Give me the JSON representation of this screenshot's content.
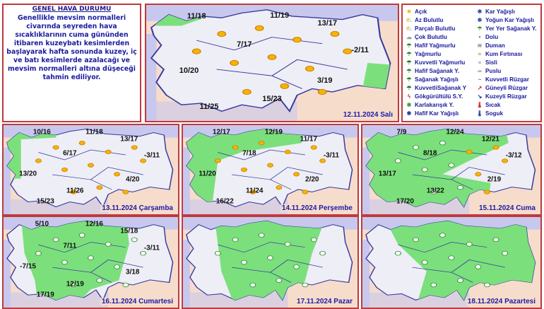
{
  "info": {
    "title": "GENEL HAVA DURUMU",
    "text": "Genellikle mevsim normalleri civarında seyreden hava sıcaklıklarının cuma gününden itibaren kuzeybatı kesimlerden başlayarak hafta sonunda kuzey, iç ve batı kesimlerde azalacağı ve mevsim normalleri altına düşeceği tahmin ediliyor."
  },
  "legend": [
    {
      "label": "Açık",
      "icon": "sun-icon"
    },
    {
      "label": "Az Bulutlu",
      "icon": "sun-cloud-icon"
    },
    {
      "label": "Parçalı Bulutlu",
      "icon": "partly-cloudy-icon"
    },
    {
      "label": "Çok Bulutlu",
      "icon": "cloud-icon"
    },
    {
      "label": "Hafif Yağmurlu",
      "icon": "light-rain-icon"
    },
    {
      "label": "Yağmurlu",
      "icon": "rain-icon"
    },
    {
      "label": "Kuvvetli Yağmurlu",
      "icon": "heavy-rain-icon"
    },
    {
      "label": "Hafif Sağanak Y.",
      "icon": "light-shower-icon"
    },
    {
      "label": "Sağanak Yağışlı",
      "icon": "shower-icon"
    },
    {
      "label": "KuvvetliSağanak Y",
      "icon": "heavy-shower-icon"
    },
    {
      "label": "Gökgürültülü S.Y.",
      "icon": "thunderstorm-icon"
    },
    {
      "label": "Karlakarışık Y.",
      "icon": "sleet-icon"
    },
    {
      "label": "Hafif Kar Yağışlı",
      "icon": "light-snow-icon"
    },
    {
      "label": "Kar Yağışlı",
      "icon": "snow-icon"
    },
    {
      "label": "Yoğun Kar Yağışlı",
      "icon": "heavy-snow-icon"
    },
    {
      "label": "Yer Yer Sağanak Y.",
      "icon": "scattered-shower-icon"
    },
    {
      "label": "Dolu",
      "icon": "hail-icon"
    },
    {
      "label": "Duman",
      "icon": "smoke-icon"
    },
    {
      "label": "Kum Fırtınası",
      "icon": "sandstorm-icon"
    },
    {
      "label": "Sisli",
      "icon": "fog-icon"
    },
    {
      "label": "Puslu",
      "icon": "haze-icon"
    },
    {
      "label": "Kuvvetli Rüzgar",
      "icon": "strong-wind-icon"
    },
    {
      "label": "Güneyli Rüzgar",
      "icon": "south-wind-icon"
    },
    {
      "label": "Kuzeyli Rüzgar",
      "icon": "north-wind-icon"
    },
    {
      "label": "Sıcak",
      "icon": "hot-icon"
    },
    {
      "label": "Soguk",
      "icon": "cold-icon"
    }
  ],
  "maps": [
    {
      "date": "12.11.2024 Salı",
      "temps": [
        "11/18",
        "11/19",
        "13/17",
        "7/17",
        "-2/11",
        "10/20",
        "3/19",
        "15/23",
        "11/25"
      ]
    },
    {
      "date": "13.11.2024 Çarşamba",
      "temps": [
        "10/16",
        "11/18",
        "13/17",
        "6/17",
        "-3/11",
        "13/20",
        "4/20",
        "11/26",
        "15/23"
      ]
    },
    {
      "date": "14.11.2024 Perşembe",
      "temps": [
        "12/17",
        "12/19",
        "11/17",
        "7/18",
        "-3/11",
        "11/20",
        "2/20",
        "11/24",
        "16/22"
      ]
    },
    {
      "date": "15.11.2024 Cuma",
      "temps": [
        "7/9",
        "12/24",
        "12/21",
        "8/18",
        "-3/12",
        "13/17",
        "2/19",
        "13/22",
        "17/20"
      ]
    },
    {
      "date": "16.11.2024 Cumartesi",
      "temps": [
        "5/10",
        "12/16",
        "15/18",
        "7/11",
        "-3/11",
        "-7/15",
        "3/18",
        "12/19",
        "17/19"
      ]
    },
    {
      "date": "17.11.2024 Pazar",
      "temps": []
    },
    {
      "date": "18.11.2024 Pazartesi",
      "temps": []
    }
  ]
}
